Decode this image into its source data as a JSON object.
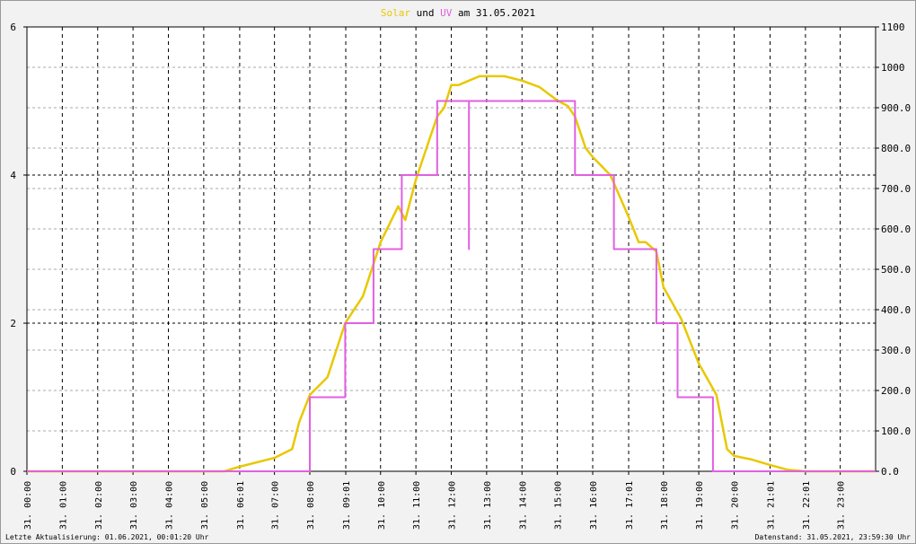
{
  "chart_data": {
    "type": "line",
    "title_parts": [
      "und",
      "am 31.05.2021"
    ],
    "footer_left": "Letzte Aktualisierung: 01.06.2021, 00:01:20 Uhr",
    "footer_right": "Datenstand: 31.05.2021, 23:59:30 Uhr",
    "grid": true,
    "xlim": [
      0,
      24
    ],
    "xticks": [
      {
        "value": 0,
        "label": "31. 00:00"
      },
      {
        "value": 1,
        "label": "31. 01:00"
      },
      {
        "value": 2,
        "label": "31. 02:00"
      },
      {
        "value": 3,
        "label": "31. 03:00"
      },
      {
        "value": 4,
        "label": "31. 04:00"
      },
      {
        "value": 5,
        "label": "31. 05:00"
      },
      {
        "value": 6.0167,
        "label": "31. 06:01"
      },
      {
        "value": 7,
        "label": "31. 07:00"
      },
      {
        "value": 8,
        "label": "31. 08:00"
      },
      {
        "value": 9.0167,
        "label": "31. 09:01"
      },
      {
        "value": 10,
        "label": "31. 10:00"
      },
      {
        "value": 11,
        "label": "31. 11:00"
      },
      {
        "value": 12,
        "label": "31. 12:00"
      },
      {
        "value": 13,
        "label": "31. 13:00"
      },
      {
        "value": 14,
        "label": "31. 14:00"
      },
      {
        "value": 15,
        "label": "31. 15:00"
      },
      {
        "value": 16,
        "label": "31. 16:00"
      },
      {
        "value": 17.0167,
        "label": "31. 17:01"
      },
      {
        "value": 18,
        "label": "31. 18:00"
      },
      {
        "value": 19,
        "label": "31. 19:00"
      },
      {
        "value": 20,
        "label": "31. 20:00"
      },
      {
        "value": 21.0167,
        "label": "31. 21:01"
      },
      {
        "value": 22.0167,
        "label": "31. 22:01"
      },
      {
        "value": 23,
        "label": "31. 23:00"
      }
    ],
    "ylim": [
      0,
      6
    ],
    "yticks": [
      0,
      2,
      4,
      6
    ],
    "y2lim": [
      0,
      1100
    ],
    "y2ticks": [
      {
        "value": 0,
        "label": "0.0"
      },
      {
        "value": 100,
        "label": "100.0"
      },
      {
        "value": 200,
        "label": "200.0"
      },
      {
        "value": 300,
        "label": "300.0"
      },
      {
        "value": 400,
        "label": "400.0"
      },
      {
        "value": 500,
        "label": "500.0"
      },
      {
        "value": 600,
        "label": "600.0"
      },
      {
        "value": 700,
        "label": "700.0"
      },
      {
        "value": 800,
        "label": "800.0"
      },
      {
        "value": 900,
        "label": "900.0"
      },
      1000,
      1100
    ],
    "series": [
      {
        "name": "Solar",
        "color": "#e8c800",
        "axis": "y2",
        "x": [
          0,
          5.58,
          6.0,
          7.0,
          7.5,
          7.7,
          8.0,
          8.5,
          9.0,
          9.5,
          10.0,
          10.5,
          10.7,
          11.0,
          11.3,
          11.6,
          11.8,
          12.0,
          12.2,
          12.5,
          12.8,
          13.0,
          13.5,
          14.0,
          14.5,
          15.0,
          15.3,
          15.5,
          15.8,
          16.0,
          16.5,
          17.0,
          17.3,
          17.5,
          17.8,
          18.0,
          18.5,
          19.0,
          19.5,
          19.8,
          20.0,
          20.5,
          21.0,
          21.5,
          22.0,
          24
        ],
        "values": [
          0,
          0,
          11,
          33,
          55,
          122,
          189,
          233,
          367,
          433,
          567,
          656,
          622,
          722,
          800,
          878,
          900,
          956,
          956,
          967,
          978,
          978,
          978,
          967,
          951,
          918,
          904,
          878,
          800,
          778,
          733,
          633,
          567,
          567,
          544,
          456,
          378,
          267,
          189,
          55,
          38,
          29,
          16,
          4,
          0,
          0
        ]
      },
      {
        "name": "UV",
        "color": "#e060e0",
        "axis": "y",
        "x": [
          0,
          8.0,
          8.0,
          9.0,
          9.0,
          9.8,
          9.8,
          10.6,
          10.6,
          11.6,
          11.6,
          12.5,
          12.5,
          12.5,
          15.5,
          15.5,
          16.6,
          16.6,
          17.8,
          17.8,
          18.4,
          18.4,
          19.4,
          19.4,
          24
        ],
        "values": [
          0,
          0,
          1,
          1,
          2,
          2,
          3,
          3,
          4,
          4,
          5,
          5,
          3,
          5,
          5,
          4,
          4,
          3,
          3,
          2,
          2,
          1,
          1,
          0,
          0
        ]
      }
    ]
  }
}
